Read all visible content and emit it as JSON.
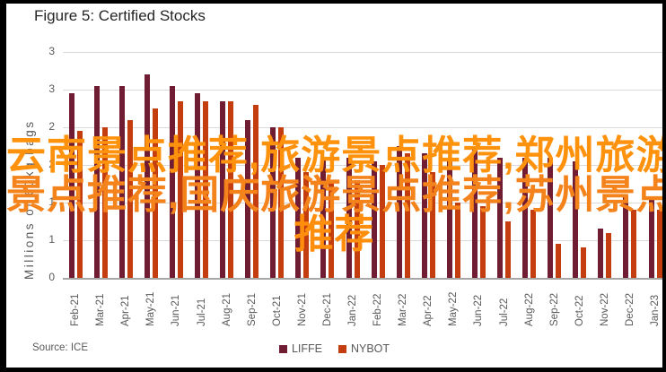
{
  "figure": {
    "title": "Figure 5: Certified Stocks",
    "source": "Source: ICE"
  },
  "watermark": {
    "lines": [
      {
        "text": "云南景点推荐,旅游景点推荐,郑州旅游",
        "color": "#FF920D"
      },
      {
        "text": "景点推荐,国庆旅游景点推荐,苏州景点",
        "color": "#F5831C"
      },
      {
        "text": "推荐",
        "color": "#FF8E0D"
      }
    ]
  },
  "chart_data": {
    "type": "bar",
    "title": "Figure 5: Certified Stocks",
    "xlabel": "",
    "ylabel": "Millions of 60kg bags",
    "ylim": [
      0,
      3
    ],
    "ytick_step": 0.5,
    "ytick_labels_bottom_to_top": [
      "0",
      "1",
      "1",
      "2",
      "2",
      "3",
      "3"
    ],
    "grid": true,
    "legend_position": "bottom-center",
    "categories": [
      "Feb-21",
      "Mar-21",
      "Apr-21",
      "May-21",
      "Jun-21",
      "Jul-21",
      "Aug-21",
      "Sep-21",
      "Oct-21",
      "Nov-21",
      "Dec-21",
      "Jan-22",
      "Feb-22",
      "Mar-22",
      "Apr-22",
      "May-22",
      "Jun-22",
      "Jul-22",
      "Aug-22",
      "Sep-22",
      "Oct-22",
      "Nov-22",
      "Dec-22",
      "Jan-23"
    ],
    "series": [
      {
        "name": "LIFFE",
        "color": "#701D33",
        "values": [
          2.45,
          2.55,
          2.55,
          2.7,
          2.55,
          2.45,
          2.35,
          2.1,
          2.0,
          1.6,
          1.6,
          1.6,
          1.55,
          1.75,
          1.65,
          1.6,
          1.75,
          1.6,
          1.6,
          1.6,
          1.55,
          0.65,
          1.1,
          1.05
        ]
      },
      {
        "name": "NYBOT",
        "color": "#C43D0F",
        "values": [
          1.95,
          2.0,
          2.1,
          2.25,
          2.35,
          2.35,
          2.35,
          2.3,
          2.0,
          1.4,
          1.3,
          1.3,
          1.5,
          1.65,
          1.4,
          1.0,
          0.95,
          0.75,
          0.9,
          0.45,
          0.4,
          0.6,
          0.9,
          0.9
        ]
      }
    ],
    "source": "Source: ICE",
    "gridline_color": "#D9D9D9",
    "axis_color": "#A6A6A6",
    "text_color": "#595959"
  }
}
